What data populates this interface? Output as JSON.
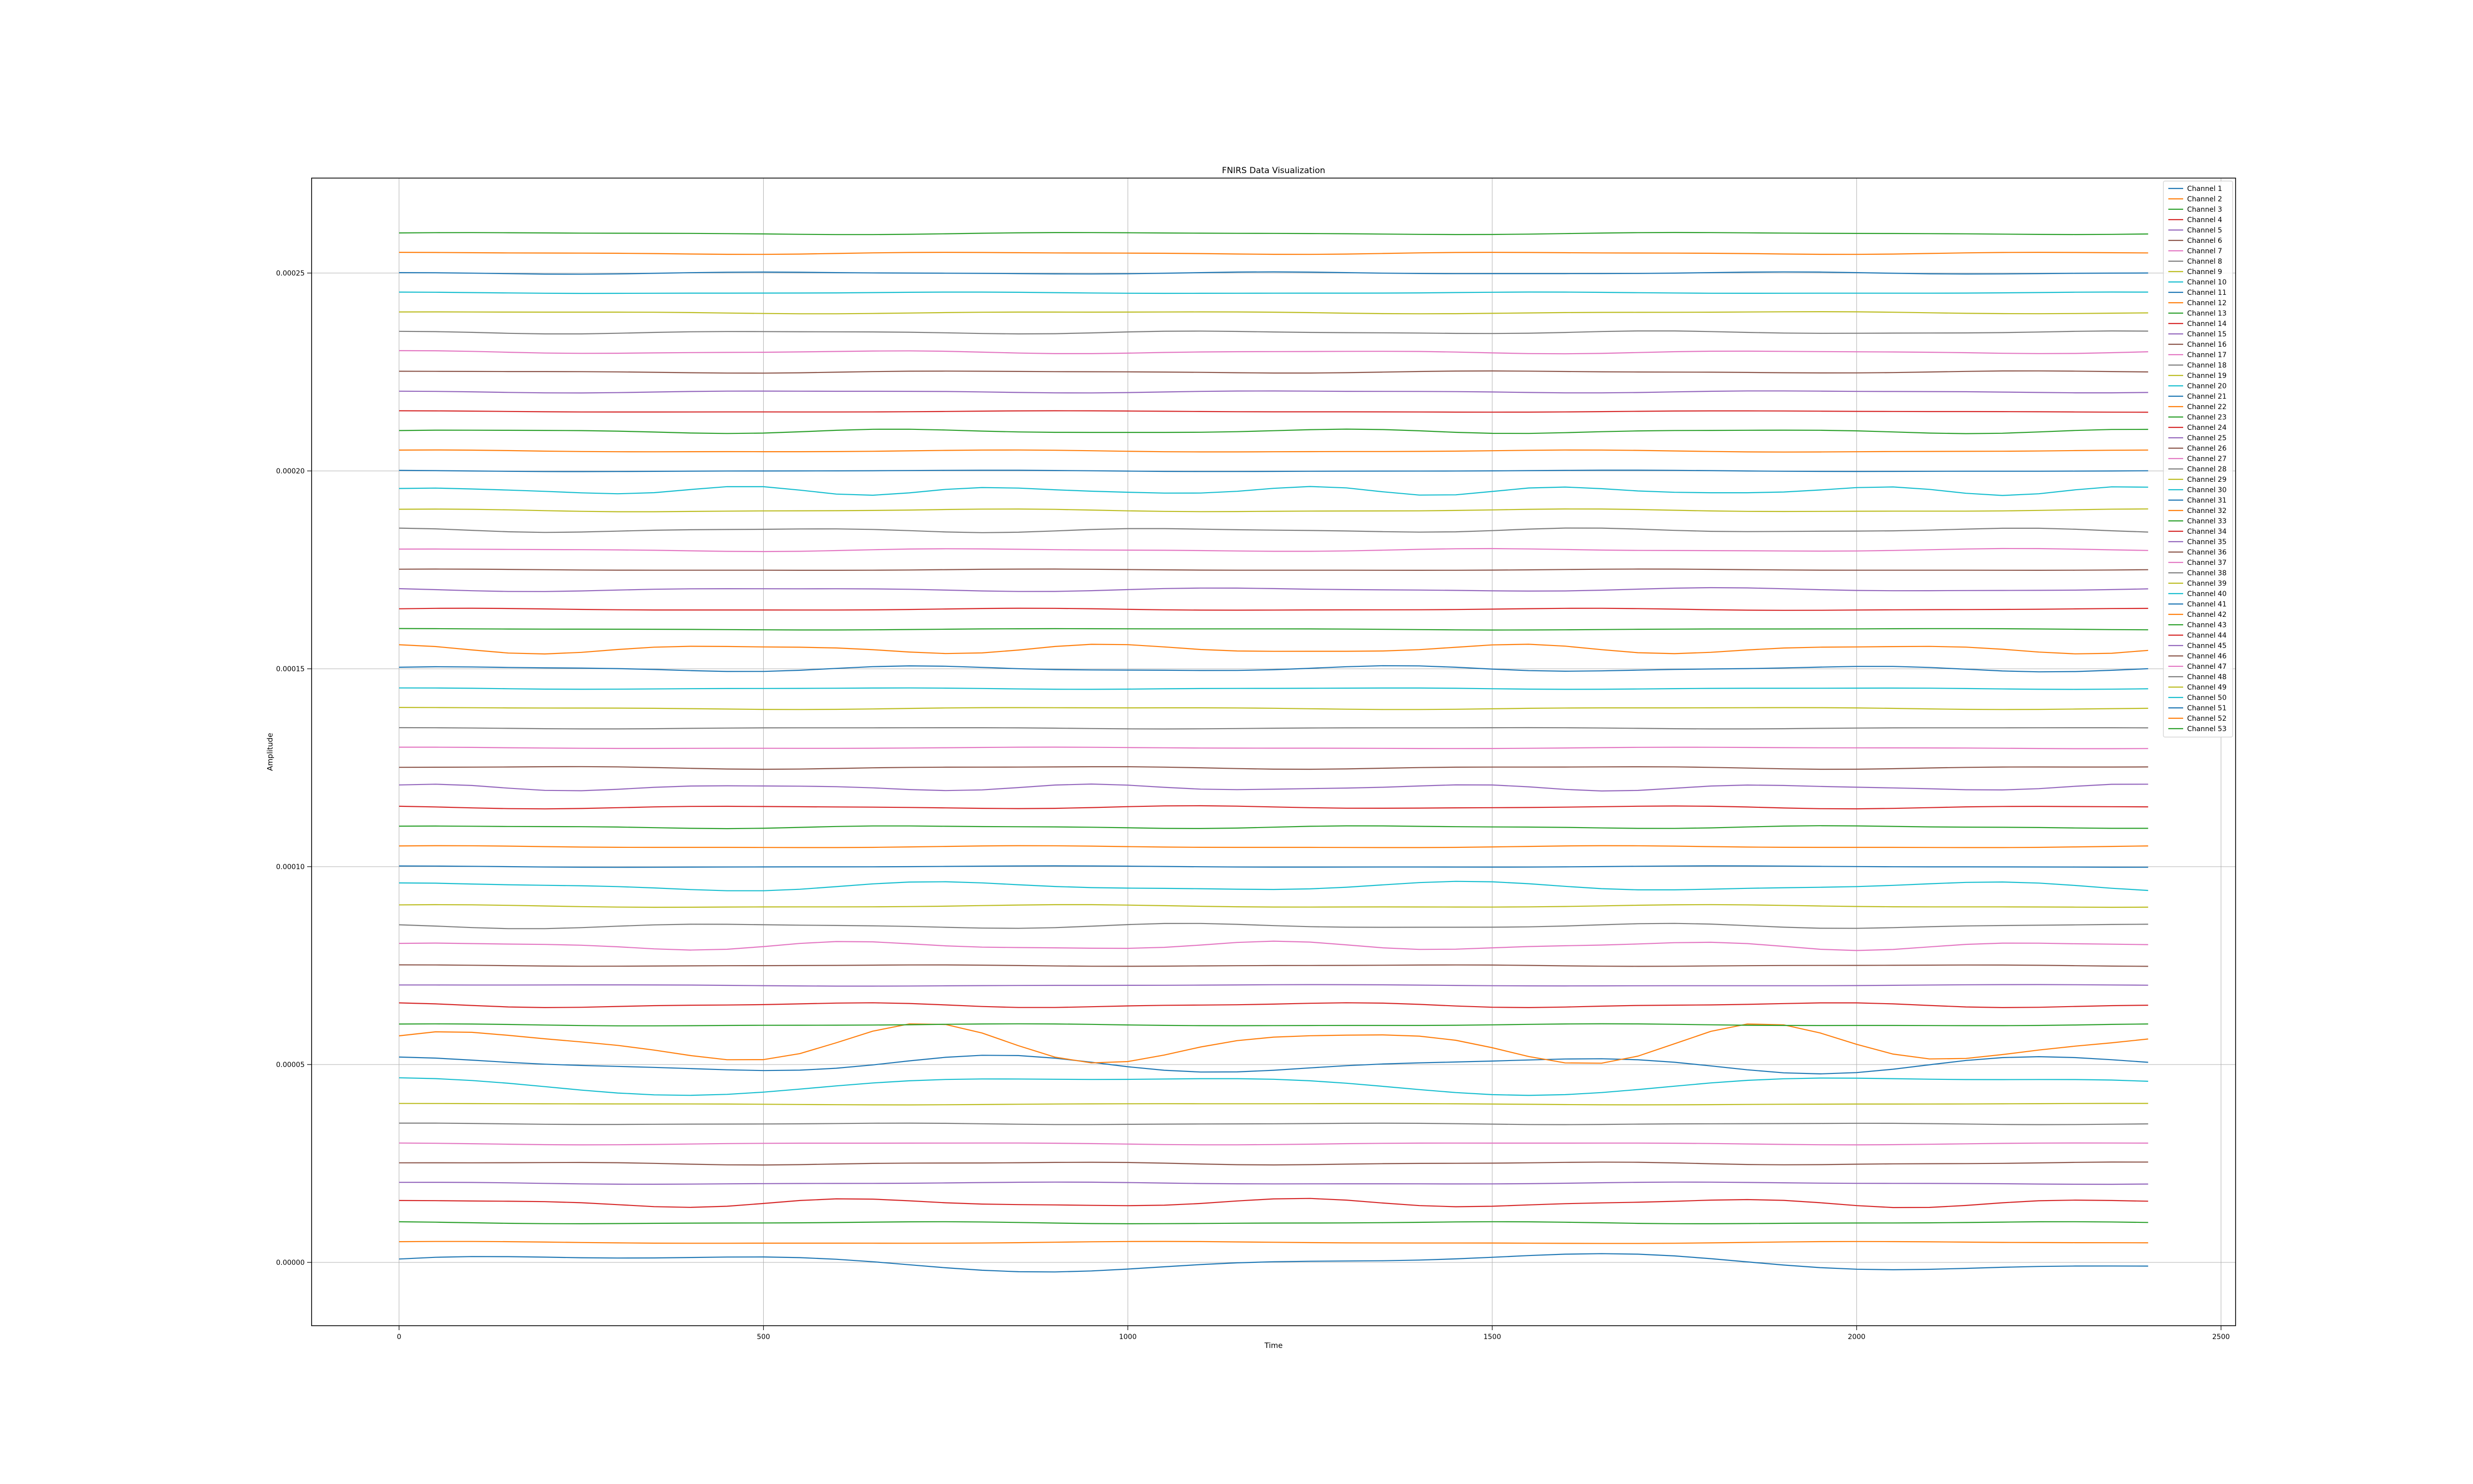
{
  "chart_data": {
    "type": "line",
    "title": "FNIRS Data Visualization",
    "xlabel": "Time",
    "ylabel": "Amplitude",
    "xlim": [
      -120,
      2520
    ],
    "ylim": [
      -1.6e-05,
      0.000274
    ],
    "xticks": [
      0,
      500,
      1000,
      1500,
      2000,
      2500
    ],
    "xtick_labels": [
      "0",
      "500",
      "1000",
      "1500",
      "2000",
      "2500"
    ],
    "yticks": [
      0,
      5e-05,
      0.0001,
      0.00015,
      0.0002,
      0.00025
    ],
    "ytick_labels": [
      "0.00000",
      "0.00005",
      "0.00010",
      "0.00015",
      "0.00020",
      "0.00025"
    ],
    "grid": true,
    "legend_position": "top-right",
    "x_start": 0,
    "x_end": 2400,
    "x_step": 50,
    "colors": [
      "#1f77b4",
      "#ff7f0e",
      "#2ca02c",
      "#d62728",
      "#9467bd",
      "#8c564b",
      "#e377c2",
      "#7f7f7f",
      "#bcbd22",
      "#17becf"
    ],
    "series": [
      {
        "name": "Channel 1",
        "offset": 0.0,
        "amp": 2.5e-06,
        "f1": 1.9,
        "f2": 4.3,
        "p1": 0.1,
        "p2": 1.3
      },
      {
        "name": "Channel 2",
        "offset": 5e-06,
        "amp": 3e-07,
        "f1": 2.4,
        "f2": 5.1,
        "p1": 1.2,
        "p2": 0.4
      },
      {
        "name": "Channel 3",
        "offset": 1e-05,
        "amp": 3e-07,
        "f1": 3.1,
        "f2": 6.2,
        "p1": 2.2,
        "p2": 1.7
      },
      {
        "name": "Channel 4",
        "offset": 1.5e-05,
        "amp": 1.2e-06,
        "f1": 4.2,
        "f2": 7.3,
        "p1": 0.7,
        "p2": 2.9
      },
      {
        "name": "Channel 5",
        "offset": 2e-05,
        "amp": 3e-07,
        "f1": 2.6,
        "f2": 5.8,
        "p1": 1.9,
        "p2": 0.2
      },
      {
        "name": "Channel 6",
        "offset": 2.5e-05,
        "amp": 4e-07,
        "f1": 3.3,
        "f2": 6.9,
        "p1": 0.3,
        "p2": 2.4
      },
      {
        "name": "Channel 7",
        "offset": 3e-05,
        "amp": 3e-07,
        "f1": 2.8,
        "f2": 5.5,
        "p1": 2.7,
        "p2": 1.1
      },
      {
        "name": "Channel 8",
        "offset": 3.5e-05,
        "amp": 2e-07,
        "f1": 3.7,
        "f2": 7.1,
        "p1": 1.5,
        "p2": 0.8
      },
      {
        "name": "Channel 9",
        "offset": 4e-05,
        "amp": 2e-07,
        "f1": 2.2,
        "f2": 4.9,
        "p1": 0.9,
        "p2": 2.1
      },
      {
        "name": "Channel 10",
        "offset": 4.5e-05,
        "amp": 2.8e-06,
        "f1": 2.1,
        "f2": 4.1,
        "p1": 2.5,
        "p2": 0.6
      },
      {
        "name": "Channel 11",
        "offset": 5e-05,
        "amp": 2.4e-06,
        "f1": 3.2,
        "f2": 5.3,
        "p1": 1.1,
        "p2": 2.6
      },
      {
        "name": "Channel 12",
        "offset": 5.5e-05,
        "amp": 5.5e-06,
        "f1": 4.1,
        "f2": 6.4,
        "p1": 0.2,
        "p2": 1.9
      },
      {
        "name": "Channel 13",
        "offset": 6e-05,
        "amp": 3e-07,
        "f1": 2.9,
        "f2": 6.1,
        "p1": 1.6,
        "p2": 0.3
      },
      {
        "name": "Channel 14",
        "offset": 6.5e-05,
        "amp": 7e-07,
        "f1": 3.6,
        "f2": 7.2,
        "p1": 2.3,
        "p2": 1.4
      },
      {
        "name": "Channel 15",
        "offset": 7e-05,
        "amp": 2e-07,
        "f1": 2.3,
        "f2": 5.2,
        "p1": 0.6,
        "p2": 2.8
      },
      {
        "name": "Channel 16",
        "offset": 7.5e-05,
        "amp": 2e-07,
        "f1": 3.4,
        "f2": 6.6,
        "p1": 1.8,
        "p2": 0.9
      },
      {
        "name": "Channel 17",
        "offset": 8e-05,
        "amp": 1.2e-06,
        "f1": 4.4,
        "f2": 7.7,
        "p1": 0.4,
        "p2": 2.2
      },
      {
        "name": "Channel 18",
        "offset": 8.5e-05,
        "amp": 7e-07,
        "f1": 3.9,
        "f2": 6.8,
        "p1": 2.9,
        "p2": 1.6
      },
      {
        "name": "Channel 19",
        "offset": 9e-05,
        "amp": 4e-07,
        "f1": 2.7,
        "f2": 5.6,
        "p1": 1.4,
        "p2": 0.5
      },
      {
        "name": "Channel 20",
        "offset": 9.5e-05,
        "amp": 1.3e-06,
        "f1": 3.5,
        "f2": 6.3,
        "p1": 0.8,
        "p2": 2.5
      },
      {
        "name": "Channel 21",
        "offset": 0.0001,
        "amp": 2e-07,
        "f1": 2.5,
        "f2": 5.4,
        "p1": 2.1,
        "p2": 1.2
      },
      {
        "name": "Channel 22",
        "offset": 0.000105,
        "amp": 3e-07,
        "f1": 3.0,
        "f2": 6.0,
        "p1": 1.0,
        "p2": 0.7
      },
      {
        "name": "Channel 23",
        "offset": 0.00011,
        "amp": 4e-07,
        "f1": 3.8,
        "f2": 7.4,
        "p1": 0.5,
        "p2": 2.0
      },
      {
        "name": "Channel 24",
        "offset": 0.000115,
        "amp": 4e-07,
        "f1": 4.0,
        "f2": 6.7,
        "p1": 2.6,
        "p2": 1.5
      },
      {
        "name": "Channel 25",
        "offset": 0.00012,
        "amp": 9e-07,
        "f1": 5.1,
        "f2": 8.3,
        "p1": 1.3,
        "p2": 0.1
      },
      {
        "name": "Channel 26",
        "offset": 0.000125,
        "amp": 4e-07,
        "f1": 3.3,
        "f2": 6.5,
        "p1": 0.2,
        "p2": 2.7
      },
      {
        "name": "Channel 27",
        "offset": 0.00013,
        "amp": 2e-07,
        "f1": 2.6,
        "f2": 5.7,
        "p1": 1.7,
        "p2": 1.0
      },
      {
        "name": "Channel 28",
        "offset": 0.000135,
        "amp": 2e-07,
        "f1": 3.1,
        "f2": 6.2,
        "p1": 2.4,
        "p2": 0.4
      },
      {
        "name": "Channel 29",
        "offset": 0.00014,
        "amp": 3e-07,
        "f1": 2.8,
        "f2": 5.9,
        "p1": 0.9,
        "p2": 2.3
      },
      {
        "name": "Channel 30",
        "offset": 0.000145,
        "amp": 2e-07,
        "f1": 3.6,
        "f2": 7.0,
        "p1": 1.9,
        "p2": 0.6
      },
      {
        "name": "Channel 31",
        "offset": 0.00015,
        "amp": 8e-07,
        "f1": 3.9,
        "f2": 6.9,
        "p1": 0.3,
        "p2": 1.8
      },
      {
        "name": "Channel 32",
        "offset": 0.000155,
        "amp": 1.3e-06,
        "f1": 4.6,
        "f2": 7.8,
        "p1": 2.2,
        "p2": 1.1
      },
      {
        "name": "Channel 33",
        "offset": 0.00016,
        "amp": 2e-07,
        "f1": 2.4,
        "f2": 5.3,
        "p1": 1.4,
        "p2": 2.6
      },
      {
        "name": "Channel 34",
        "offset": 0.000165,
        "amp": 3e-07,
        "f1": 3.2,
        "f2": 6.1,
        "p1": 0.7,
        "p2": 0.3
      },
      {
        "name": "Channel 35",
        "offset": 0.00017,
        "amp": 5e-07,
        "f1": 3.7,
        "f2": 6.6,
        "p1": 2.8,
        "p2": 1.9
      },
      {
        "name": "Channel 36",
        "offset": 0.000175,
        "amp": 2e-07,
        "f1": 2.9,
        "f2": 5.8,
        "p1": 1.1,
        "p2": 0.8
      },
      {
        "name": "Channel 37",
        "offset": 0.00018,
        "amp": 4e-07,
        "f1": 3.4,
        "f2": 6.4,
        "p1": 0.6,
        "p2": 2.2
      },
      {
        "name": "Channel 38",
        "offset": 0.000185,
        "amp": 6e-07,
        "f1": 4.3,
        "f2": 7.5,
        "p1": 2.0,
        "p2": 1.3
      },
      {
        "name": "Channel 39",
        "offset": 0.00019,
        "amp": 4e-07,
        "f1": 3.0,
        "f2": 6.2,
        "p1": 1.6,
        "p2": 0.2
      },
      {
        "name": "Channel 40",
        "offset": 0.000195,
        "amp": 1.2e-06,
        "f1": 6.2,
        "f2": 9.1,
        "p1": 0.4,
        "p2": 2.4
      },
      {
        "name": "Channel 41",
        "offset": 0.0002,
        "amp": 2e-07,
        "f1": 2.7,
        "f2": 5.6,
        "p1": 2.5,
        "p2": 1.7
      },
      {
        "name": "Channel 42",
        "offset": 0.000205,
        "amp": 3e-07,
        "f1": 3.1,
        "f2": 6.0,
        "p1": 1.2,
        "p2": 0.9
      },
      {
        "name": "Channel 43",
        "offset": 0.00021,
        "amp": 6e-07,
        "f1": 4.2,
        "f2": 7.1,
        "p1": 0.1,
        "p2": 2.0
      },
      {
        "name": "Channel 44",
        "offset": 0.000215,
        "amp": 2e-07,
        "f1": 2.5,
        "f2": 5.4,
        "p1": 1.8,
        "p2": 1.4
      },
      {
        "name": "Channel 45",
        "offset": 0.00022,
        "amp": 3e-07,
        "f1": 3.5,
        "f2": 6.8,
        "p1": 2.6,
        "p2": 0.5
      },
      {
        "name": "Channel 46",
        "offset": 0.000225,
        "amp": 3e-07,
        "f1": 3.3,
        "f2": 6.3,
        "p1": 0.8,
        "p2": 2.8
      },
      {
        "name": "Channel 47",
        "offset": 0.00023,
        "amp": 4e-07,
        "f1": 3.8,
        "f2": 6.9,
        "p1": 1.5,
        "p2": 1.0
      },
      {
        "name": "Channel 48",
        "offset": 0.000235,
        "amp": 4e-07,
        "f1": 4.0,
        "f2": 7.2,
        "p1": 2.3,
        "p2": 0.6
      },
      {
        "name": "Channel 49",
        "offset": 0.00024,
        "amp": 3e-07,
        "f1": 2.8,
        "f2": 5.9,
        "p1": 0.5,
        "p2": 2.1
      },
      {
        "name": "Channel 50",
        "offset": 0.000245,
        "amp": 2e-07,
        "f1": 3.0,
        "f2": 6.1,
        "p1": 1.9,
        "p2": 1.5
      },
      {
        "name": "Channel 51",
        "offset": 0.00025,
        "amp": 3e-07,
        "f1": 3.6,
        "f2": 6.5,
        "p1": 2.7,
        "p2": 0.3
      },
      {
        "name": "Channel 52",
        "offset": 0.000255,
        "amp": 3e-07,
        "f1": 3.2,
        "f2": 6.4,
        "p1": 1.0,
        "p2": 2.5
      },
      {
        "name": "Channel 53",
        "offset": 0.00026,
        "amp": 3e-07,
        "f1": 2.9,
        "f2": 5.7,
        "p1": 0.3,
        "p2": 1.2
      }
    ]
  }
}
